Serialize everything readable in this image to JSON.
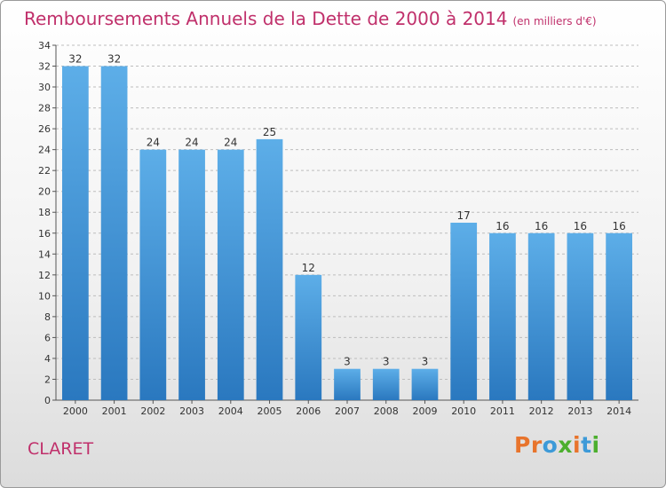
{
  "header": {
    "title": "Remboursements Annuels de la Dette de 2000 à 2014",
    "subtitle": "(en milliers d'€)"
  },
  "footer": {
    "city": "CLARET",
    "logo": [
      "P",
      "r",
      "o",
      "x",
      "i",
      "t",
      "i"
    ]
  },
  "colors": {
    "title": "#c0306b",
    "bar_top": "#5daee8",
    "bar_bottom": "#2a78bf",
    "logo": [
      "#e8742c",
      "#e8742c",
      "#3d9ad8",
      "#4caf2e",
      "#e8742c",
      "#3d9ad8",
      "#4caf2e"
    ]
  },
  "chart_data": {
    "type": "bar",
    "title": "Remboursements Annuels de la Dette de 2000 à 2014",
    "subtitle": "(en milliers d'€)",
    "categories": [
      "2000",
      "2001",
      "2002",
      "2003",
      "2004",
      "2005",
      "2006",
      "2007",
      "2008",
      "2009",
      "2010",
      "2011",
      "2012",
      "2013",
      "2014"
    ],
    "values": [
      32,
      32,
      24,
      24,
      24,
      25,
      12,
      3,
      3,
      3,
      17,
      16,
      16,
      16,
      16
    ],
    "ylim": [
      0,
      34
    ],
    "yticks": [
      0,
      2,
      4,
      6,
      8,
      10,
      12,
      14,
      16,
      18,
      20,
      22,
      24,
      26,
      28,
      30,
      32,
      34
    ],
    "xlabel": "",
    "ylabel": "",
    "grid": true,
    "legend": "none"
  }
}
